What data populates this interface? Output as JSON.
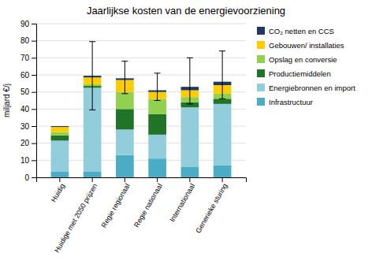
{
  "chart_data": {
    "type": "bar",
    "stacked": true,
    "title": "Jaarlijkse kosten van de energievoorziening",
    "ylabel": "miljard €/j",
    "categories": [
      "Huidig",
      "Huidige met 2050 prijzen",
      "Regie regionaal",
      "Regie nationaal",
      "Internationaal",
      "Generieke sturing"
    ],
    "series": [
      {
        "name": "Infrastructuur",
        "color": "#4BACC6",
        "values": [
          3.5,
          3.5,
          13,
          11,
          6,
          7
        ]
      },
      {
        "name": "Energiebronnen en import",
        "color": "#92CDDC",
        "values": [
          18,
          49,
          15,
          14,
          35,
          36
        ]
      },
      {
        "name": "Productiemiddelen",
        "color": "#1F7427",
        "values": [
          3,
          1,
          12,
          12,
          3,
          3
        ]
      },
      {
        "name": "Opslag en conversie",
        "color": "#92D050",
        "values": [
          2,
          1,
          10,
          9,
          3,
          3
        ]
      },
      {
        "name": "Gebouwen/ installaties",
        "color": "#FFCC00",
        "values": [
          3,
          4,
          7,
          4,
          4,
          5
        ]
      },
      {
        "name": "CO₂ netten en CCS",
        "color": "#1F3864",
        "values": [
          0.5,
          1,
          1,
          1,
          2,
          2
        ]
      }
    ],
    "error_low": [
      null,
      20,
      9,
      6,
      10,
      10
    ],
    "error_high": [
      null,
      20,
      10,
      10,
      17,
      18
    ],
    "ylim": [
      0,
      90
    ],
    "yticks": [
      0,
      10,
      20,
      30,
      40,
      50,
      60,
      70,
      80,
      90
    ],
    "grid": true,
    "legend": "right"
  }
}
